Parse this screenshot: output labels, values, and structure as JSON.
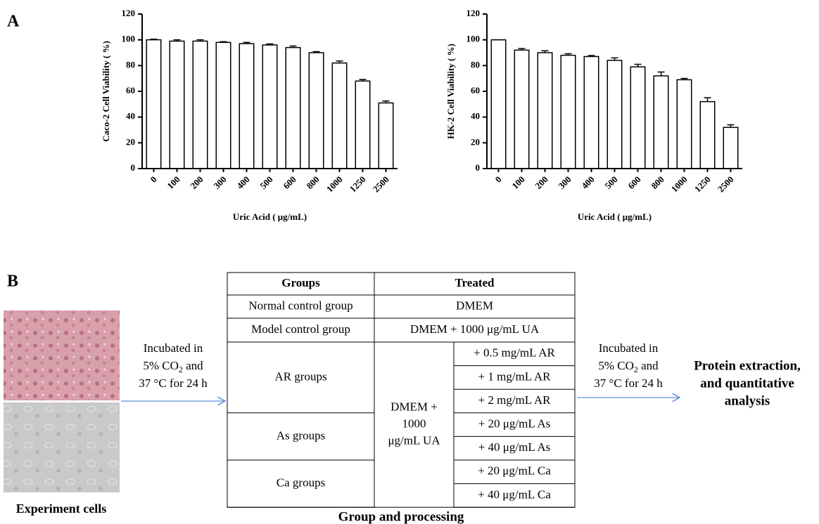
{
  "panel_labels": [
    "A",
    "B"
  ],
  "chart_data": [
    {
      "type": "bar",
      "ylabel": "Caco-2 Cell Viability ( %)",
      "xlabel": "Uric Acid ( μg/mL)",
      "categories": [
        "0",
        "100",
        "200",
        "300",
        "400",
        "500",
        "600",
        "800",
        "1000",
        "1250",
        "2500"
      ],
      "values": [
        100,
        99,
        99,
        98,
        97,
        96,
        94,
        90,
        82,
        68,
        51
      ],
      "errors": [
        0.5,
        1,
        1,
        0.5,
        1,
        0.8,
        1.2,
        0.8,
        1.5,
        1.2,
        1.5
      ],
      "color": "#ffffff",
      "ylim": [
        0,
        120
      ],
      "yticks": [
        0,
        20,
        40,
        60,
        80,
        100,
        120
      ]
    },
    {
      "type": "bar",
      "ylabel": "HK-2 Cell Viability ( %)",
      "xlabel": "Uric Acid ( μg/mL)",
      "categories": [
        "0",
        "100",
        "200",
        "300",
        "400",
        "500",
        "600",
        "800",
        "1000",
        "1250",
        "2500"
      ],
      "values": [
        100,
        92,
        90,
        88,
        87,
        84,
        79,
        72,
        69,
        52,
        32
      ],
      "errors": [
        0,
        1.2,
        1.5,
        1.2,
        0.8,
        2,
        2,
        3,
        1,
        3,
        2
      ],
      "color": "#ffffff",
      "ylim": [
        0,
        120
      ],
      "yticks": [
        0,
        20,
        40,
        60,
        80,
        100,
        120
      ]
    }
  ],
  "diagram": {
    "cells_caption": "Experiment cells",
    "incubation_left": {
      "line1": "Incubated in",
      "line2": {
        "before": "5%  CO",
        "sub": "2",
        "after": " and"
      },
      "line3": "37 °C for 24 h"
    },
    "incubation_right": {
      "line1": "Incubated in",
      "line2": {
        "before": "5%  CO",
        "sub": "2",
        "after": " and"
      },
      "line3": "37 °C for 24 h"
    },
    "outcome": [
      "Protein extraction,",
      "and quantitative",
      "analysis"
    ],
    "table": {
      "header": [
        "Groups",
        "Treated"
      ],
      "rows": [
        [
          "Normal control group",
          "DMEM"
        ],
        [
          "Model control group",
          "DMEM + 1000 μg/mL UA"
        ]
      ],
      "shared_treatment": [
        "DMEM +",
        "1000",
        "μg/mL UA"
      ],
      "groups": [
        {
          "name": "AR groups",
          "treatments": [
            "+ 0.5 mg/mL AR",
            "+ 1 mg/mL AR",
            "+ 2 mg/mL AR"
          ]
        },
        {
          "name": "As groups",
          "treatments": [
            "+ 20 μg/mL As",
            "+ 40 μg/mL As"
          ]
        },
        {
          "name": "Ca groups",
          "treatments": [
            "+ 20 μg/mL Ca",
            "+ 40 μg/mL Ca"
          ]
        }
      ],
      "caption": "Group and processing"
    }
  }
}
